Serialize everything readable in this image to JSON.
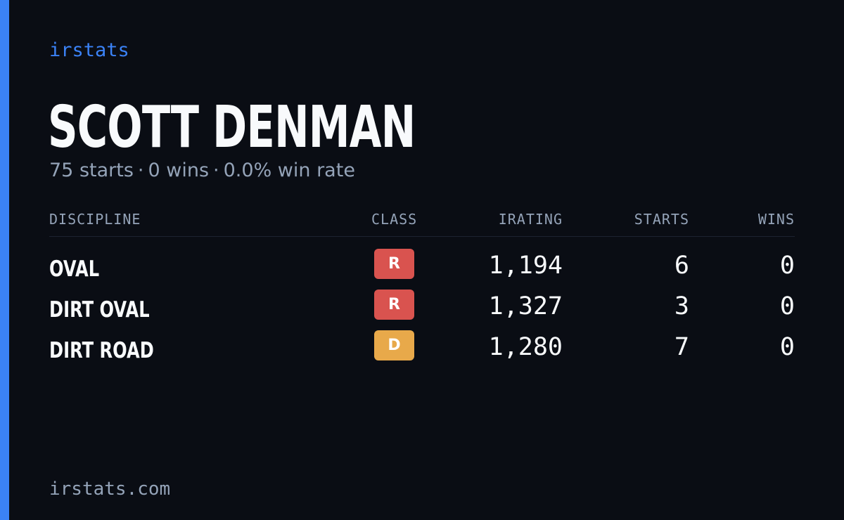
{
  "brand": "irstats",
  "driver": {
    "name": "SCOTT DENMAN"
  },
  "summary": {
    "starts": "75 starts",
    "wins": "0 wins",
    "win_rate": "0.0% win rate",
    "separator": "·"
  },
  "table": {
    "headers": {
      "discipline": "DISCIPLINE",
      "class": "CLASS",
      "irating": "IRATING",
      "starts": "STARTS",
      "wins": "WINS"
    },
    "rows": [
      {
        "discipline": "OVAL",
        "class": "R",
        "class_color": "#d9534f",
        "irating": "1,194",
        "starts": "6",
        "wins": "0"
      },
      {
        "discipline": "DIRT OVAL",
        "class": "R",
        "class_color": "#d9534f",
        "irating": "1,327",
        "starts": "3",
        "wins": "0"
      },
      {
        "discipline": "DIRT ROAD",
        "class": "D",
        "class_color": "#e8a94a",
        "irating": "1,280",
        "starts": "7",
        "wins": "0"
      }
    ]
  },
  "footer": {
    "url": "irstats.com"
  },
  "colors": {
    "background": "#0a0d14",
    "accent": "#3b82f6",
    "text_primary": "#f8fafc",
    "text_muted": "#94a3b8",
    "class_r": "#d9534f",
    "class_d": "#e8a94a"
  }
}
